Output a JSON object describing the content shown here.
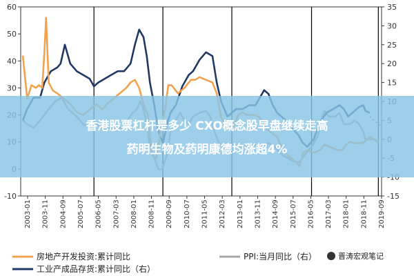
{
  "banner": {
    "line1": "香港股票杠杆是多少 CXO概念股早盘继续走高",
    "line2": "药明生物及药明康德均涨超4%"
  },
  "watermark": "晋涛宏观笔记",
  "colors": {
    "housing": "#f0a24e",
    "ppi": "#a6a6a6",
    "inventory": "#1f3864",
    "forecast": "#c0504d",
    "banner": "#87c4e6",
    "vline": "#000000",
    "axis": "#333333"
  },
  "chart_data": {
    "type": "line",
    "title": "",
    "xlabel": "",
    "ylabel": "",
    "ylim": [
      -10,
      60
    ],
    "y2lim": [
      -15,
      35
    ],
    "yticks": [
      -10,
      0,
      10,
      20,
      30,
      40,
      50,
      60
    ],
    "y2ticks": [
      -15,
      -10,
      -5,
      0,
      5,
      10,
      15,
      20,
      25,
      30,
      35
    ],
    "xlim": [
      2003.0,
      2019.75
    ],
    "xticks": [
      "2003-01",
      "2003-11",
      "2004-09",
      "2005-07",
      "2006-05",
      "2007-03",
      "2008-01",
      "2008-11",
      "2009-09",
      "2010-07",
      "2011-05",
      "2012-03",
      "2013-01",
      "2013-11",
      "2014-09",
      "2015-07",
      "2016-05",
      "2017-03",
      "2018-01",
      "2018-11",
      "2019-09"
    ],
    "cycle_markers": [
      2006.4,
      2009.6,
      2012.8,
      2016.5,
      2019.6
    ],
    "series": [
      {
        "name": "房地产开发投资:累计同比",
        "axis": "left",
        "color": "#f0a24e",
        "points": [
          [
            2003.1,
            42
          ],
          [
            2003.3,
            26
          ],
          [
            2003.5,
            31
          ],
          [
            2003.7,
            30
          ],
          [
            2003.85,
            31
          ],
          [
            2004.0,
            30
          ],
          [
            2004.1,
            43
          ],
          [
            2004.18,
            56
          ],
          [
            2004.3,
            32
          ],
          [
            2004.5,
            29
          ],
          [
            2004.7,
            28
          ],
          [
            2005.0,
            26
          ],
          [
            2005.3,
            24
          ],
          [
            2005.6,
            21
          ],
          [
            2005.9,
            20
          ],
          [
            2006.2,
            22
          ],
          [
            2006.5,
            24
          ],
          [
            2006.8,
            22
          ],
          [
            2007.0,
            24
          ],
          [
            2007.3,
            26
          ],
          [
            2007.6,
            28
          ],
          [
            2007.9,
            30
          ],
          [
            2008.1,
            32
          ],
          [
            2008.3,
            33
          ],
          [
            2008.5,
            30
          ],
          [
            2008.7,
            24
          ],
          [
            2008.9,
            20
          ],
          [
            2009.1,
            5
          ],
          [
            2009.3,
            4
          ],
          [
            2009.5,
            14
          ],
          [
            2009.7,
            22
          ],
          [
            2009.85,
            31
          ],
          [
            2010.0,
            31
          ],
          [
            2010.3,
            28
          ],
          [
            2010.6,
            30
          ],
          [
            2010.9,
            33
          ],
          [
            2011.1,
            33
          ],
          [
            2011.3,
            34
          ],
          [
            2011.6,
            33
          ],
          [
            2011.9,
            32
          ],
          [
            2012.1,
            28
          ],
          [
            2012.3,
            19
          ],
          [
            2012.6,
            16
          ],
          [
            2012.9,
            16
          ],
          [
            2013.1,
            20
          ],
          [
            2013.3,
            21
          ],
          [
            2013.5,
            20
          ],
          [
            2013.7,
            20
          ],
          [
            2013.9,
            20
          ],
          [
            2014.1,
            19
          ],
          [
            2014.4,
            15
          ],
          [
            2014.7,
            13
          ],
          [
            2014.9,
            12
          ],
          [
            2015.1,
            8
          ],
          [
            2015.4,
            5
          ],
          [
            2015.7,
            3
          ],
          [
            2015.95,
            1
          ],
          [
            2016.1,
            6
          ],
          [
            2016.3,
            7
          ],
          [
            2016.6,
            6
          ],
          [
            2016.9,
            7
          ],
          [
            2017.1,
            9
          ],
          [
            2017.4,
            8
          ],
          [
            2017.7,
            7
          ],
          [
            2017.95,
            7
          ],
          [
            2018.1,
            9
          ],
          [
            2018.3,
            10
          ],
          [
            2018.5,
            9.5
          ],
          [
            2018.7,
            9.6
          ],
          [
            2018.9,
            9.7
          ],
          [
            2019.1,
            11
          ],
          [
            2019.2,
            12
          ],
          [
            2019.4,
            11
          ],
          [
            2019.6,
            10.5
          ]
        ]
      },
      {
        "name": "PPI:当月同比",
        "axis": "right",
        "color": "#a6a6a6",
        "points": [
          [
            2003.1,
            5
          ],
          [
            2003.3,
            4
          ],
          [
            2003.6,
            3
          ],
          [
            2003.9,
            5
          ],
          [
            2004.3,
            8
          ],
          [
            2004.6,
            10
          ],
          [
            2004.9,
            11
          ],
          [
            2005.2,
            8
          ],
          [
            2005.6,
            6
          ],
          [
            2005.9,
            4
          ],
          [
            2006.2,
            3
          ],
          [
            2006.5,
            4
          ],
          [
            2006.8,
            3
          ],
          [
            2007.1,
            3
          ],
          [
            2007.4,
            3
          ],
          [
            2007.7,
            3
          ],
          [
            2007.95,
            5
          ],
          [
            2008.2,
            7
          ],
          [
            2008.4,
            8
          ],
          [
            2008.55,
            10
          ],
          [
            2008.7,
            8
          ],
          [
            2008.85,
            4
          ],
          [
            2009.0,
            -2
          ],
          [
            2009.2,
            -5
          ],
          [
            2009.4,
            -8
          ],
          [
            2009.55,
            -8
          ],
          [
            2009.8,
            -4
          ],
          [
            2009.95,
            2
          ],
          [
            2010.2,
            5
          ],
          [
            2010.4,
            7
          ],
          [
            2010.6,
            5
          ],
          [
            2010.8,
            4
          ],
          [
            2011.0,
            6
          ],
          [
            2011.3,
            7
          ],
          [
            2011.6,
            7.5
          ],
          [
            2011.8,
            6
          ],
          [
            2012.0,
            2
          ],
          [
            2012.2,
            -1
          ],
          [
            2012.5,
            -3
          ],
          [
            2012.8,
            -2
          ],
          [
            2013.0,
            -2
          ],
          [
            2013.3,
            -2
          ],
          [
            2013.6,
            -2
          ],
          [
            2013.9,
            -1.5
          ],
          [
            2014.2,
            -2
          ],
          [
            2014.5,
            -1
          ],
          [
            2014.8,
            -2
          ],
          [
            2015.1,
            -4
          ],
          [
            2015.4,
            -5
          ],
          [
            2015.7,
            -6
          ],
          [
            2015.95,
            -6
          ],
          [
            2016.2,
            -4
          ],
          [
            2016.5,
            -2
          ],
          [
            2016.8,
            1
          ],
          [
            2016.95,
            5
          ],
          [
            2017.1,
            7.5
          ],
          [
            2017.3,
            6
          ],
          [
            2017.6,
            6
          ],
          [
            2017.8,
            7
          ],
          [
            2018.0,
            4
          ],
          [
            2018.3,
            4
          ],
          [
            2018.5,
            5
          ],
          [
            2018.7,
            4
          ],
          [
            2018.9,
            2
          ],
          [
            2019.0,
            0
          ],
          [
            2019.2,
            0
          ],
          [
            2019.4,
            0
          ],
          [
            2019.6,
            -1
          ]
        ]
      },
      {
        "name": "工业产成品存货:累计同比（右）",
        "axis": "right",
        "color": "#1f3864",
        "points": [
          [
            2003.1,
            5
          ],
          [
            2003.3,
            8
          ],
          [
            2003.6,
            11
          ],
          [
            2003.9,
            11
          ],
          [
            2004.1,
            15
          ],
          [
            2004.4,
            18
          ],
          [
            2004.7,
            19
          ],
          [
            2004.85,
            20
          ],
          [
            2005.05,
            25
          ],
          [
            2005.3,
            20
          ],
          [
            2005.6,
            18
          ],
          [
            2005.9,
            17
          ],
          [
            2006.2,
            16
          ],
          [
            2006.4,
            14
          ],
          [
            2006.6,
            15
          ],
          [
            2006.9,
            16
          ],
          [
            2007.2,
            17
          ],
          [
            2007.5,
            18
          ],
          [
            2007.8,
            18
          ],
          [
            2008.1,
            20
          ],
          [
            2008.3,
            25
          ],
          [
            2008.5,
            29
          ],
          [
            2008.7,
            27
          ],
          [
            2008.85,
            22
          ],
          [
            2009.0,
            15
          ],
          [
            2009.2,
            9
          ],
          [
            2009.4,
            2
          ],
          [
            2009.6,
            -1
          ],
          [
            2009.8,
            4
          ],
          [
            2009.95,
            7
          ],
          [
            2010.2,
            9
          ],
          [
            2010.5,
            14
          ],
          [
            2010.8,
            17
          ],
          [
            2011.0,
            18
          ],
          [
            2011.3,
            21
          ],
          [
            2011.6,
            23
          ],
          [
            2011.9,
            22
          ],
          [
            2012.1,
            15
          ],
          [
            2012.3,
            10
          ],
          [
            2012.6,
            6
          ],
          [
            2012.8,
            7
          ],
          [
            2013.0,
            8
          ],
          [
            2013.3,
            8
          ],
          [
            2013.6,
            9
          ],
          [
            2013.9,
            9
          ],
          [
            2014.1,
            11
          ],
          [
            2014.3,
            13
          ],
          [
            2014.5,
            12
          ],
          [
            2014.7,
            9
          ],
          [
            2014.9,
            7
          ],
          [
            2015.1,
            6
          ],
          [
            2015.3,
            5
          ],
          [
            2015.6,
            3
          ],
          [
            2015.9,
            1
          ],
          [
            2016.1,
            -1
          ],
          [
            2016.3,
            -2
          ],
          [
            2016.6,
            0
          ],
          [
            2016.8,
            3
          ],
          [
            2016.95,
            5
          ],
          [
            2017.2,
            7
          ],
          [
            2017.5,
            8
          ],
          [
            2017.8,
            9
          ],
          [
            2018.0,
            8
          ],
          [
            2018.2,
            6
          ],
          [
            2018.4,
            7
          ],
          [
            2018.7,
            8.5
          ],
          [
            2018.9,
            9
          ],
          [
            2019.0,
            7.5
          ],
          [
            2019.2,
            7
          ]
        ]
      }
    ],
    "forecast": {
      "axis": "right",
      "color": "#c0504d",
      "points": [
        [
          2019.2,
          6
        ],
        [
          2019.4,
          5
        ],
        [
          2019.6,
          4
        ],
        [
          2019.75,
          3.5
        ]
      ]
    },
    "legend": {
      "placement": "bottom",
      "entries": [
        {
          "label": "房地产开发投资:累计同比",
          "color": "#f0a24e"
        },
        {
          "label": "PPI:当月同比（右）",
          "color": "#a6a6a6"
        },
        {
          "label": "工业产成品存货:累计同比（右）",
          "color": "#1f3864"
        }
      ]
    }
  }
}
